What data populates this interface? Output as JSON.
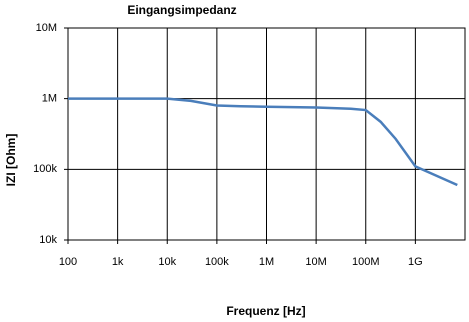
{
  "chart_data": {
    "type": "line",
    "title": "Eingangsimpedanz",
    "x_label": "Frequenz [Hz]",
    "y_label": "IZI [Ohm]",
    "x_log": true,
    "y_log": true,
    "grid": true,
    "xlim": [
      100,
      10000000000
    ],
    "ylim": [
      10000,
      10000000
    ],
    "xticks": [
      100,
      {
        "value": 1000,
        "label": "1k"
      },
      {
        "value": 10000,
        "label": "10k"
      },
      {
        "value": 100000,
        "label": "100k"
      },
      {
        "value": 1000000,
        "label": "1M"
      },
      {
        "value": 10000000,
        "label": "10M"
      },
      {
        "value": 100000000,
        "label": "100M"
      },
      {
        "value": 1000000000,
        "label": "1G"
      }
    ],
    "yticks": [
      {
        "value": 10000,
        "label": "10k"
      },
      {
        "value": 100000,
        "label": "100k"
      },
      {
        "value": 1000000,
        "label": "1M"
      },
      {
        "value": 10000000,
        "label": "10M"
      }
    ],
    "x": [
      100,
      1000,
      10000,
      30000,
      100000,
      300000,
      1000000,
      10000000,
      50000000,
      100000000,
      200000000,
      400000000,
      1000000000,
      7000000000
    ],
    "series": [
      {
        "name": "IZI",
        "color": "#4a7ebb",
        "values": [
          1000000,
          1000000,
          1000000,
          930000,
          800000,
          780000,
          770000,
          750000,
          720000,
          690000,
          470000,
          270000,
          110000,
          60000
        ]
      }
    ]
  }
}
